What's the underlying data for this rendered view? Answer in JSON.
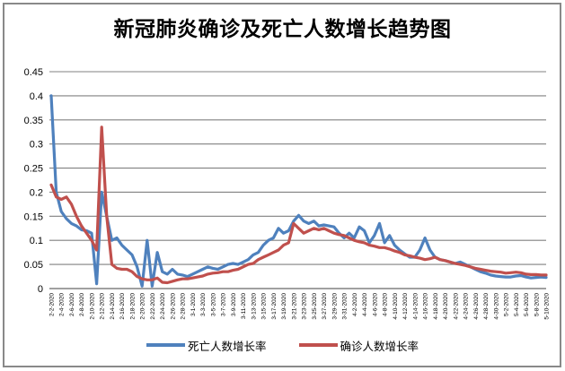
{
  "window": {
    "background": "#ffffff",
    "frame_border_color": "#898989"
  },
  "chart_data": {
    "type": "line",
    "title": "新冠肺炎确诊及死亡人数增长趋势图",
    "xlabel": "",
    "ylabel": "",
    "ylim": [
      0,
      0.45
    ],
    "y_ticks": [
      "0.45",
      "0.4",
      "0.35",
      "0.3",
      "0.25",
      "0.2",
      "0.15",
      "0.1",
      "0.05",
      "0"
    ],
    "grid": true,
    "gridline_color": "#808080",
    "axis_text_color": "#000000",
    "legend_position": "bottom",
    "x_label_every": 2,
    "x_label_rotation": -90,
    "categories": [
      "2-2-2020",
      "2-3-2020",
      "2-4-2020",
      "2-5-2020",
      "2-6-2020",
      "2-7-2020",
      "2-8-2020",
      "2-9-2020",
      "2-10-2020",
      "2-11-2020",
      "2-12-2020",
      "2-13-2020",
      "2-14-2020",
      "2-15-2020",
      "2-16-2020",
      "2-17-2020",
      "2-18-2020",
      "2-19-2020",
      "2-20-2020",
      "2-21-2020",
      "2-22-2020",
      "2-23-2020",
      "2-24-2020",
      "2-25-2020",
      "2-26-2020",
      "2-27-2020",
      "2-28-2020",
      "2-29-2020",
      "3-1-2020",
      "3-2-2020",
      "3-3-2020",
      "3-4-2020",
      "3-5-2020",
      "3-6-2020",
      "3-7-2020",
      "3-8-2020",
      "3-9-2020",
      "3-10-2020",
      "3-11-2020",
      "3-12-2020",
      "3-13-2020",
      "3-14-2020",
      "3-15-2020",
      "3-16-2020",
      "3-17-2020",
      "3-18-2020",
      "3-19-2020",
      "3-20-2020",
      "3-21-2020",
      "3-22-2020",
      "3-23-2020",
      "3-24-2020",
      "3-25-2020",
      "3-26-2020",
      "3-27-2020",
      "3-28-2020",
      "3-29-2020",
      "3-30-2020",
      "3-31-2020",
      "4-1-2020",
      "4-2-2020",
      "4-3-2020",
      "4-4-2020",
      "4-5-2020",
      "4-6-2020",
      "4-7-2020",
      "4-8-2020",
      "4-9-2020",
      "4-10-2020",
      "4-11-2020",
      "4-12-2020",
      "4-13-2020",
      "4-14-2020",
      "4-15-2020",
      "4-16-2020",
      "4-17-2020",
      "4-18-2020",
      "4-19-2020",
      "4-20-2020",
      "4-21-2020",
      "4-22-2020",
      "4-23-2020",
      "4-24-2020",
      "4-25-2020",
      "4-26-2020",
      "4-27-2020",
      "4-28-2020",
      "4-29-2020",
      "4-30-2020",
      "5-1-2020",
      "5-2-2020",
      "5-3-2020",
      "5-4-2020",
      "5-5-2020",
      "5-6-2020",
      "5-7-2020",
      "5-8-2020",
      "5-9-2020",
      "5-10-2020"
    ],
    "series": [
      {
        "name": "死亡人数增长率",
        "color": "#4F81BD",
        "values": [
          0.4,
          0.2,
          0.16,
          0.145,
          0.135,
          0.13,
          0.122,
          0.12,
          0.115,
          0.01,
          0.2,
          0.15,
          0.1,
          0.105,
          0.09,
          0.08,
          0.07,
          0.045,
          0.005,
          0.1,
          0.005,
          0.075,
          0.035,
          0.03,
          0.04,
          0.03,
          0.028,
          0.025,
          0.03,
          0.035,
          0.04,
          0.045,
          0.042,
          0.04,
          0.045,
          0.05,
          0.052,
          0.05,
          0.055,
          0.06,
          0.07,
          0.075,
          0.09,
          0.1,
          0.105,
          0.125,
          0.115,
          0.12,
          0.14,
          0.152,
          0.14,
          0.135,
          0.14,
          0.13,
          0.132,
          0.13,
          0.128,
          0.115,
          0.105,
          0.115,
          0.105,
          0.128,
          0.12,
          0.095,
          0.11,
          0.135,
          0.095,
          0.11,
          0.09,
          0.08,
          0.072,
          0.065,
          0.065,
          0.08,
          0.105,
          0.08,
          0.065,
          0.06,
          0.058,
          0.055,
          0.052,
          0.055,
          0.05,
          0.045,
          0.04,
          0.035,
          0.032,
          0.028,
          0.026,
          0.025,
          0.024,
          0.024,
          0.026,
          0.027,
          0.024,
          0.022,
          0.023,
          0.024,
          0.023
        ]
      },
      {
        "name": "确诊人数增长率",
        "color": "#C0504D",
        "values": [
          0.215,
          0.19,
          0.185,
          0.19,
          0.175,
          0.15,
          0.13,
          0.115,
          0.1,
          0.08,
          0.335,
          0.15,
          0.05,
          0.042,
          0.04,
          0.04,
          0.035,
          0.025,
          0.02,
          0.018,
          0.018,
          0.022,
          0.013,
          0.012,
          0.015,
          0.018,
          0.02,
          0.02,
          0.022,
          0.024,
          0.026,
          0.03,
          0.032,
          0.033,
          0.035,
          0.035,
          0.038,
          0.04,
          0.045,
          0.05,
          0.052,
          0.06,
          0.065,
          0.07,
          0.075,
          0.08,
          0.09,
          0.095,
          0.135,
          0.125,
          0.115,
          0.12,
          0.125,
          0.122,
          0.125,
          0.12,
          0.115,
          0.112,
          0.11,
          0.105,
          0.1,
          0.097,
          0.095,
          0.09,
          0.088,
          0.085,
          0.085,
          0.082,
          0.078,
          0.075,
          0.07,
          0.068,
          0.065,
          0.063,
          0.06,
          0.062,
          0.065,
          0.06,
          0.058,
          0.055,
          0.052,
          0.05,
          0.048,
          0.045,
          0.042,
          0.04,
          0.038,
          0.036,
          0.035,
          0.034,
          0.032,
          0.033,
          0.034,
          0.033,
          0.03,
          0.029,
          0.029,
          0.028,
          0.028
        ]
      }
    ]
  }
}
